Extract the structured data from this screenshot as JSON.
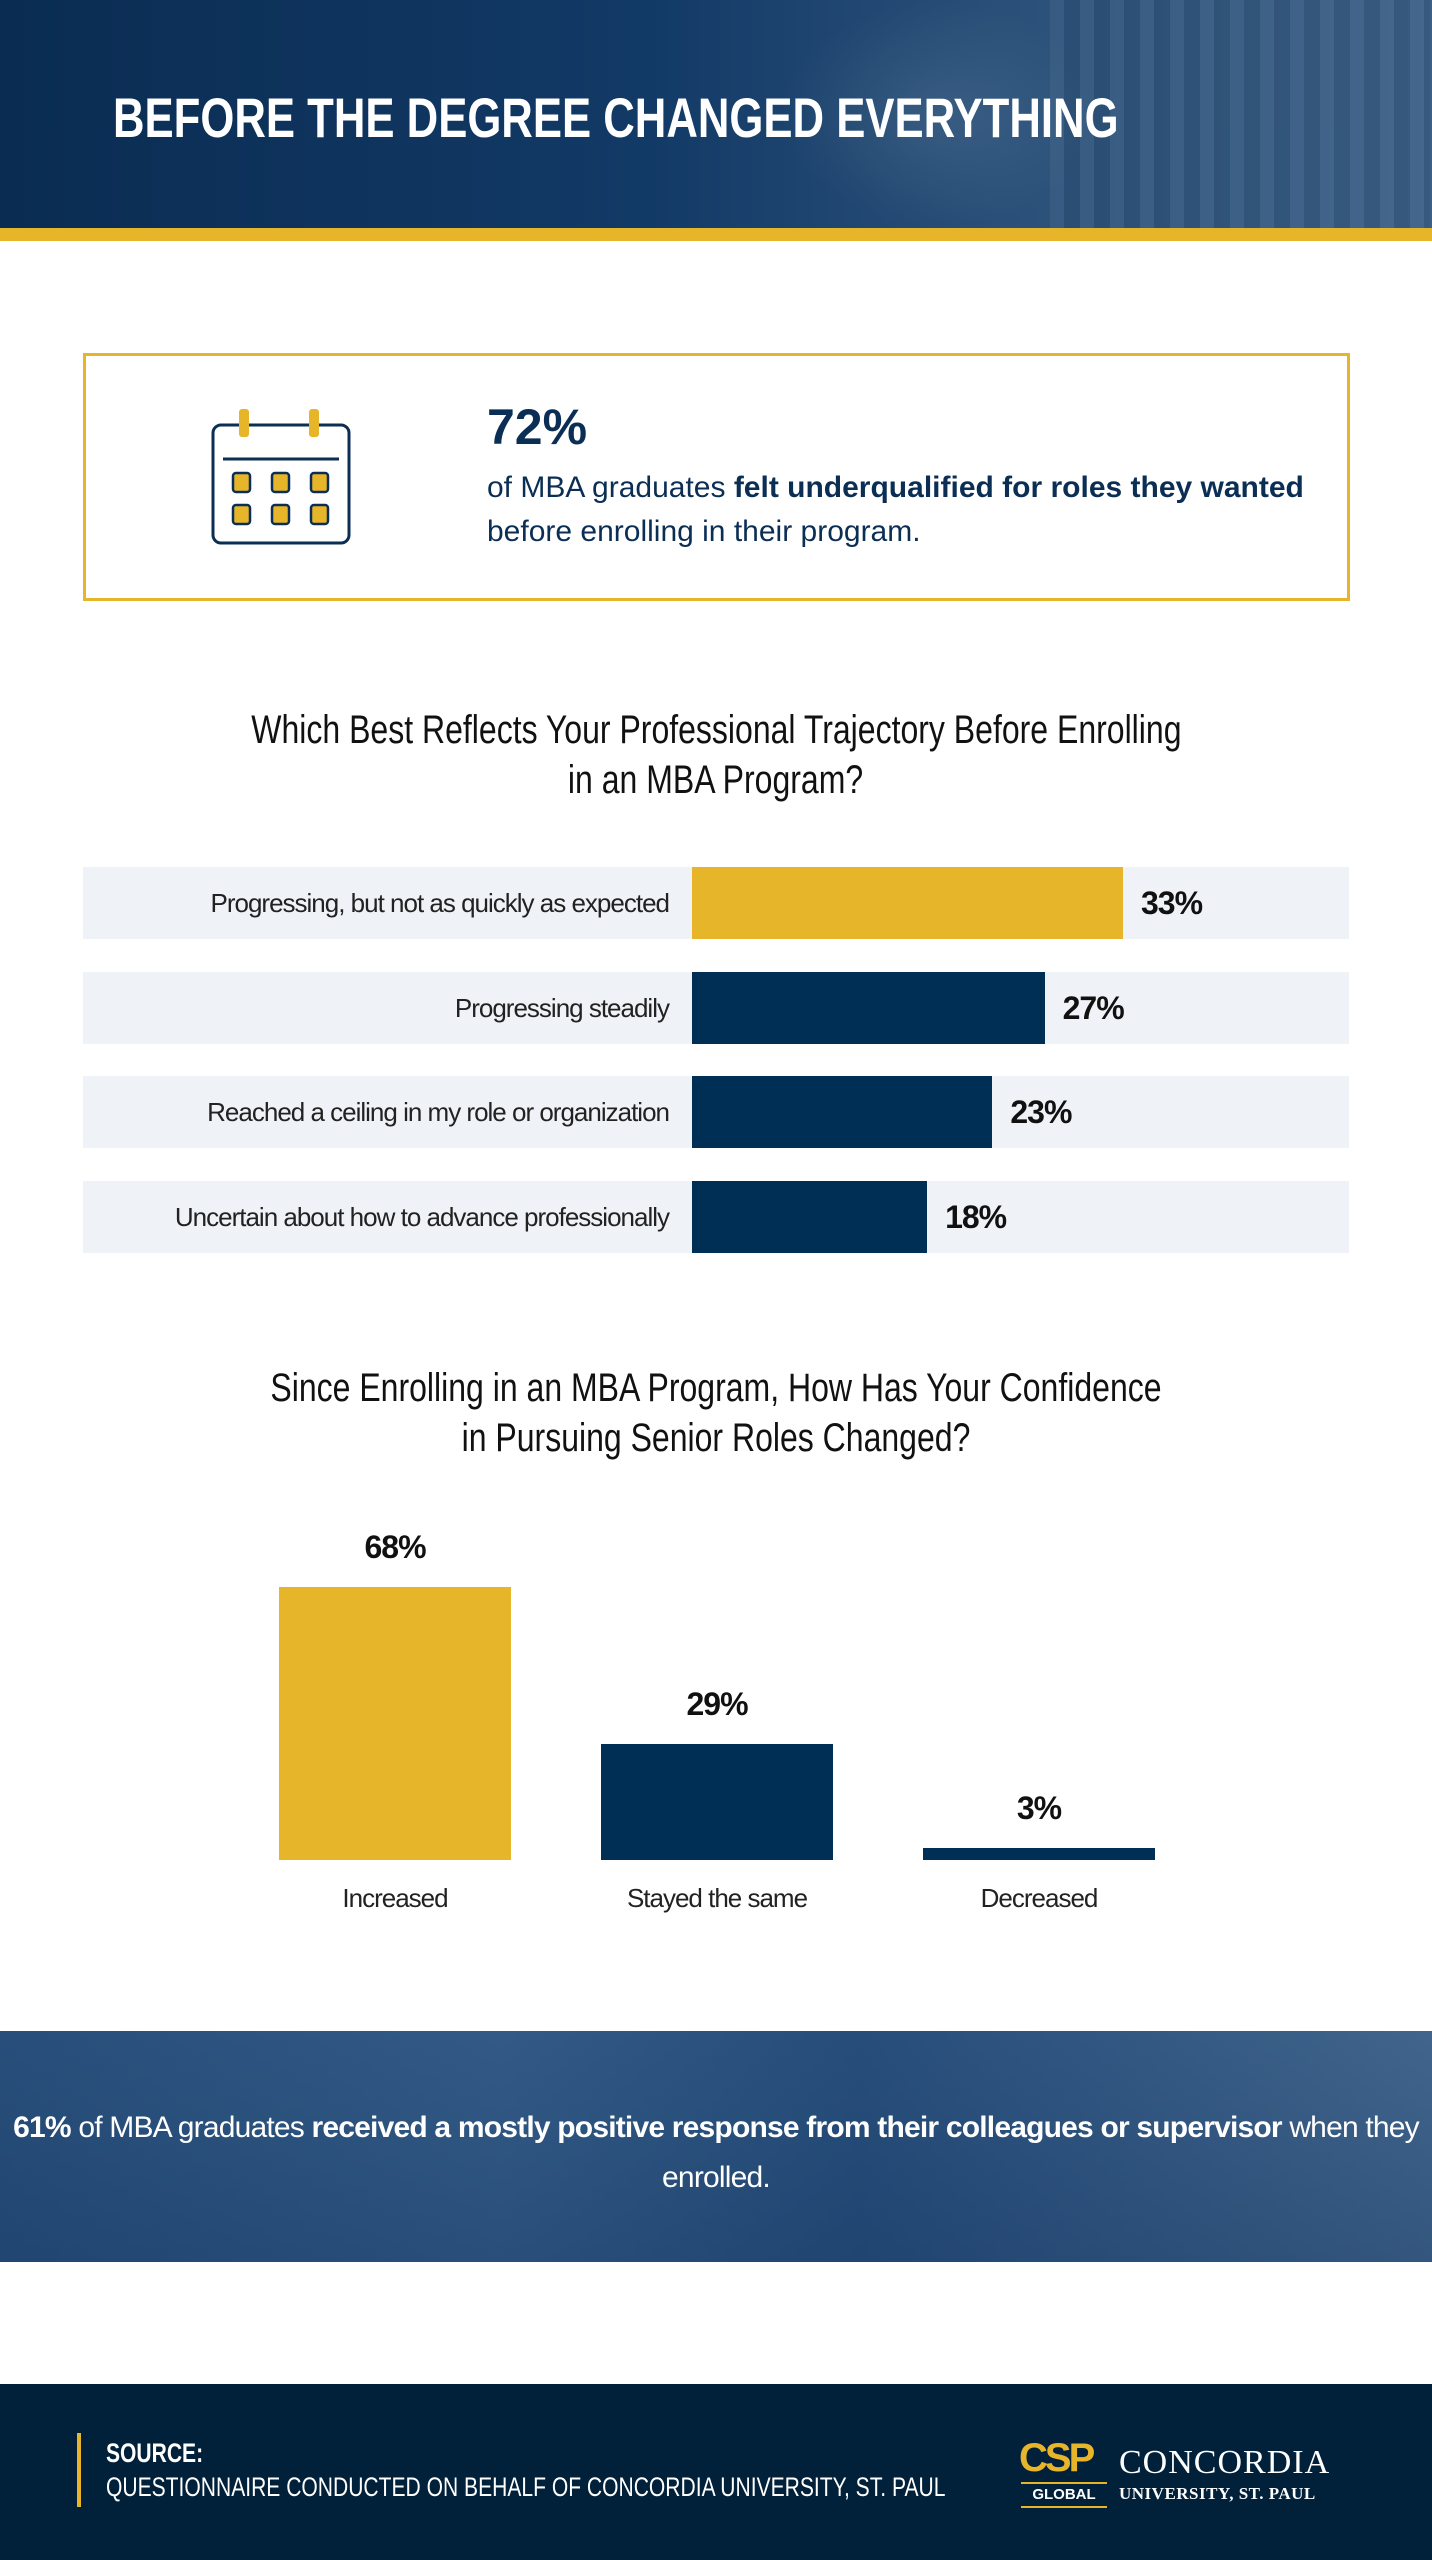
{
  "header": {
    "title": "BEFORE THE DEGREE CHANGED EVERYTHING"
  },
  "callout": {
    "icon": "calendar-icon",
    "stat": "72%",
    "text_pre": "of MBA graduates ",
    "text_bold": "felt underqualified for roles they wanted",
    "text_post": " before enrolling in their program."
  },
  "colors": {
    "gold": "#e6b52a",
    "navy": "#002f56",
    "row_bg": "#eff3f7"
  },
  "chart_data": [
    {
      "type": "bar",
      "orientation": "horizontal",
      "title": [
        "Which Best Reflects Your Professional Trajectory Before Enrolling",
        "in an MBA Program?"
      ],
      "categories": [
        "Progressing, but not as quickly as expected",
        "Progressing steadily",
        "Reached a ceiling in my role or organization",
        "Uncertain about how to advance professionally"
      ],
      "values": [
        33,
        27,
        23,
        18
      ],
      "value_labels": [
        "33%",
        "27%",
        "23%",
        "18%"
      ],
      "highlight_index": 0,
      "xlim": [
        0,
        50
      ],
      "grid": false
    },
    {
      "type": "bar",
      "orientation": "vertical",
      "title": [
        "Since Enrolling in an MBA Program, How Has Your Confidence",
        "in Pursuing Senior Roles Changed?"
      ],
      "categories": [
        "Increased",
        "Stayed the same",
        "Decreased"
      ],
      "values": [
        68,
        29,
        3
      ],
      "value_labels": [
        "68%",
        "29%",
        "3%"
      ],
      "highlight_index": 0,
      "ylim": [
        0,
        68
      ],
      "grid": false
    }
  ],
  "banner": {
    "stat": "61%",
    "text_pre": " of MBA graduates ",
    "text_bold": "received a mostly positive response from their colleagues or supervisor",
    "text_post": " when they enrolled."
  },
  "footer": {
    "source_label": "SOURCE:",
    "source_text": "QUESTIONNAIRE CONDUCTED ON BEHALF OF CONCORDIA UNIVERSITY, ST. PAUL",
    "logo": {
      "mark": "CSP",
      "sub": "GLOBAL",
      "name": "CONCORDIA",
      "tagline": "UNIVERSITY, ST. PAUL"
    }
  }
}
